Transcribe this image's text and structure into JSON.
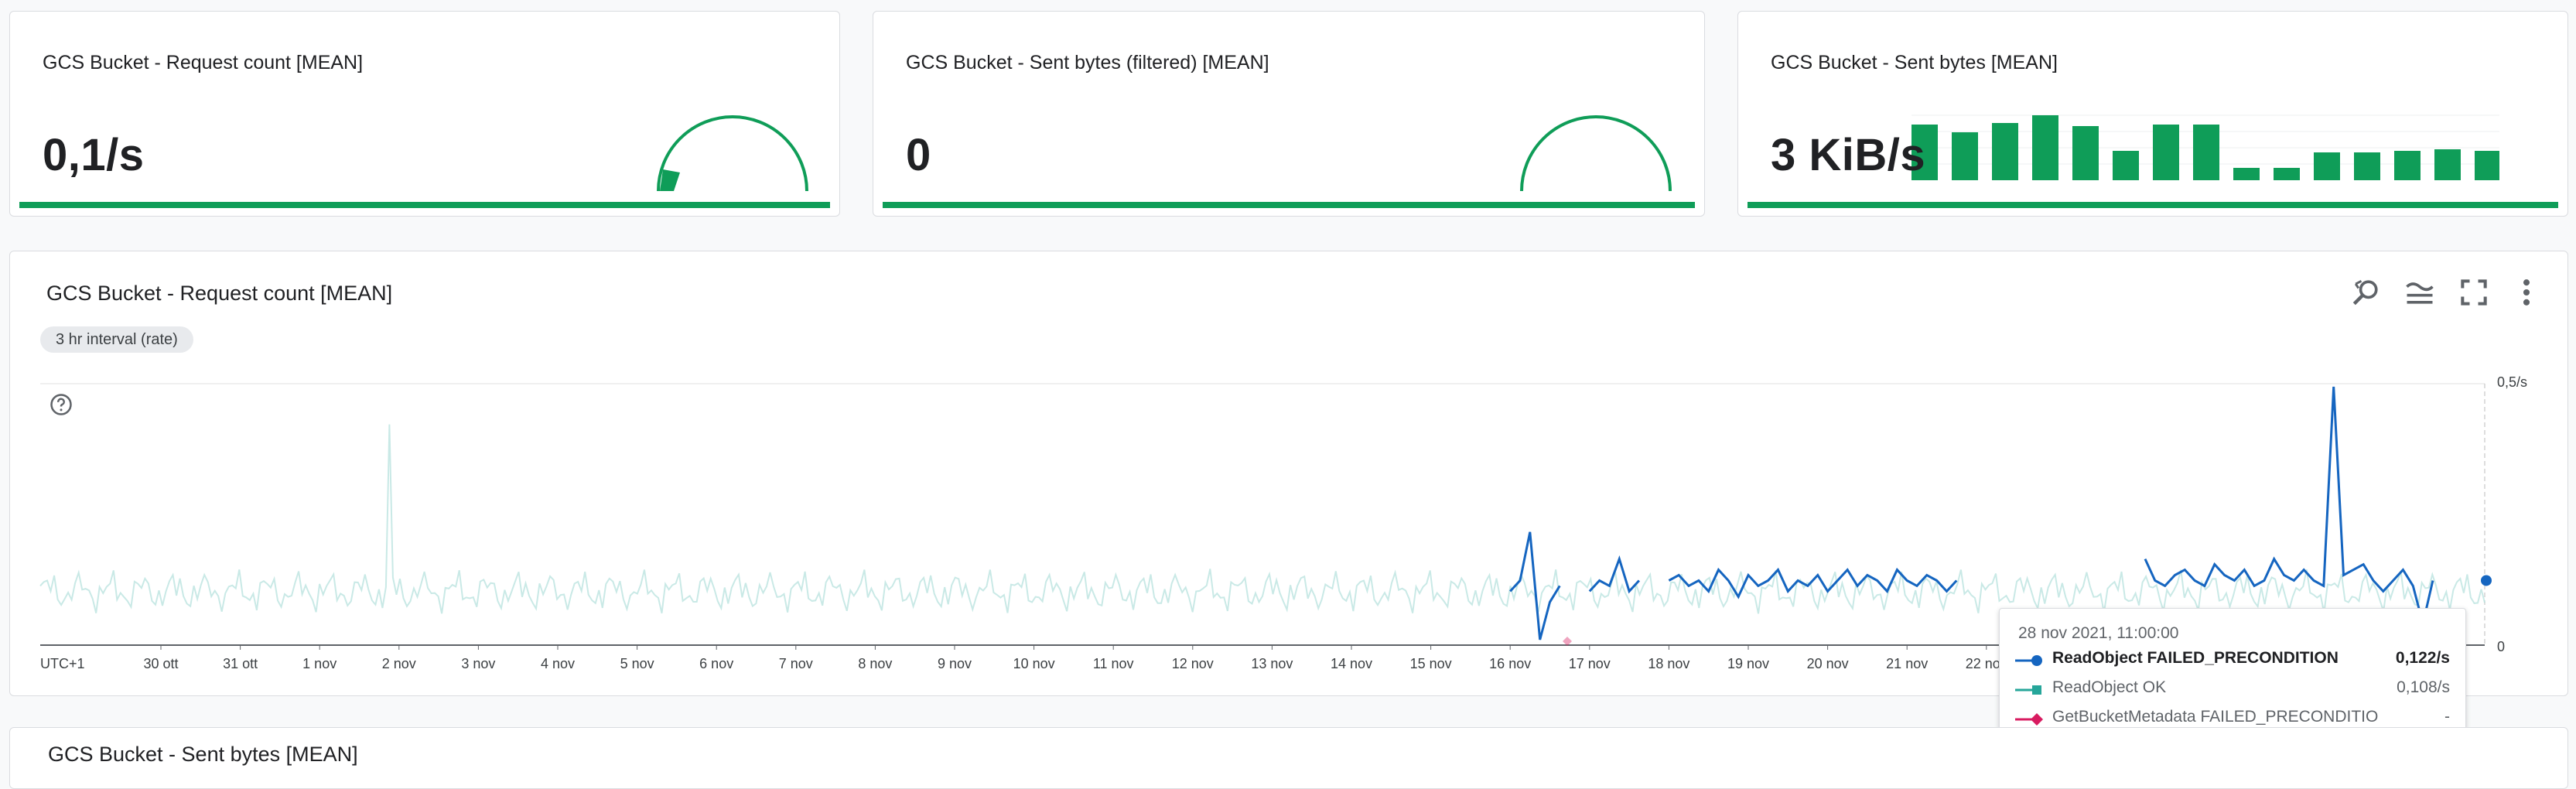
{
  "scorecards": [
    {
      "title": "GCS Bucket - Request count [MEAN]",
      "value": "0,1/s",
      "gauge_fraction": 0.05
    },
    {
      "title": "GCS Bucket - Sent bytes (filtered) [MEAN]",
      "value": "0",
      "gauge_fraction": 0
    },
    {
      "title": "GCS Bucket - Sent bytes [MEAN]",
      "value": "3 KiB/s",
      "spark_values": [
        0.72,
        0.62,
        0.74,
        0.84,
        0.7,
        0.38,
        0.72,
        0.72,
        0.16,
        0.16,
        0.36,
        0.36,
        0.38,
        0.4,
        0.38
      ]
    },
    {
      "title": "",
      "value": ""
    }
  ],
  "main_chart": {
    "title": "GCS Bucket - Request count [MEAN]",
    "interval_chip": "3 hr interval (rate)",
    "icons": [
      "zoom-reset-icon",
      "legend-icon",
      "fullscreen-icon",
      "more-vert-icon"
    ],
    "help_icon": "help-circle-icon",
    "timezone_label": "UTC+1",
    "y_ticks": [
      "0,5/s",
      "0"
    ],
    "colors": {
      "primary": "#1565c0",
      "faded": "#b2dfdb",
      "accent": "#0f9d58",
      "pink": "#d81b60"
    }
  },
  "chart_data": {
    "type": "line",
    "title": "GCS Bucket - Request count [MEAN]",
    "xlabel": "",
    "ylabel": "",
    "ylim": [
      0,
      0.5
    ],
    "x_ticks": [
      "30 ott",
      "31 ott",
      "1 nov",
      "2 nov",
      "3 nov",
      "4 nov",
      "5 nov",
      "6 nov",
      "7 nov",
      "8 nov",
      "9 nov",
      "10 nov",
      "11 nov",
      "12 nov",
      "13 nov",
      "14 nov",
      "15 nov",
      "16 nov",
      "17 nov",
      "18 nov",
      "19 nov",
      "20 nov",
      "21 nov",
      "22 nov"
    ],
    "series": [
      {
        "name": "ReadObject FAILED_PRECONDITION",
        "color": "#1565c0",
        "segments": [
          {
            "start": "16 nov",
            "values": [
              0.1,
              0.12,
              0.21,
              0.01,
              0.08,
              0.11
            ]
          },
          {
            "start": "17 nov",
            "values": [
              0.1,
              0.12,
              0.11,
              0.16,
              0.1,
              0.12
            ]
          },
          {
            "start": "18 nov",
            "values": [
              0.12,
              0.13,
              0.11,
              0.12,
              0.1,
              0.14,
              0.12,
              0.09,
              0.13,
              0.11,
              0.12,
              0.14,
              0.1,
              0.12,
              0.11,
              0.13,
              0.1,
              0.12,
              0.14,
              0.11,
              0.13,
              0.12,
              0.1,
              0.14,
              0.12,
              0.11,
              0.13,
              0.12,
              0.1,
              0.12
            ]
          },
          {
            "start": "24 nov",
            "values": [
              0.16,
              0.12,
              0.11,
              0.13,
              0.14,
              0.12,
              0.11,
              0.15,
              0.13,
              0.12,
              0.14,
              0.11,
              0.12,
              0.16,
              0.13,
              0.12,
              0.14,
              0.12,
              0.11,
              0.48,
              0.13,
              0.14,
              0.15,
              0.12,
              0.1,
              0.12,
              0.14,
              0.11,
              0.04,
              0.12
            ]
          }
        ]
      },
      {
        "name": "ReadObject OK",
        "color": "#26a69a",
        "values_description_none": true
      },
      {
        "name": "GetBucketMetadata FAILED_PRECONDITION",
        "color": "#d81b60"
      }
    ]
  },
  "tooltip": {
    "time": "28 nov 2021, 11:00:00",
    "rows": [
      {
        "name": "ReadObject FAILED_PRECONDITION",
        "value": "0,122/s",
        "color": "#1565c0",
        "marker": "circle",
        "bold": true
      },
      {
        "name": "ReadObject OK",
        "value": "0,108/s",
        "color": "#26a69a",
        "marker": "square",
        "bold": false
      },
      {
        "name": "GetBucketMetadata FAILED_PRECONDITIO",
        "value": "-",
        "color": "#d81b60",
        "marker": "diamond",
        "bold": false
      }
    ],
    "wrap_text": "N"
  },
  "bottom_chart": {
    "title": "GCS Bucket - Sent bytes [MEAN]"
  }
}
